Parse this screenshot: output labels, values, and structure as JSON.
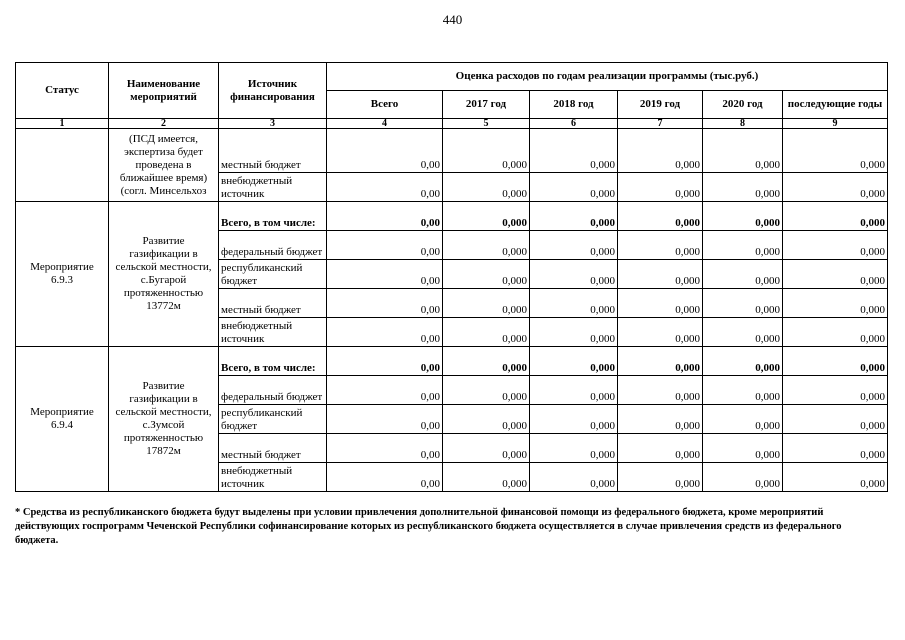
{
  "page_number": "440",
  "table": {
    "header": {
      "status": "Статус",
      "name": "Наименование мероприятий",
      "source": "Источник финансирования",
      "estimate": "Оценка расходов по годам реализации  программы (тыс.руб.)",
      "years": [
        "Всего",
        "2017 год",
        "2018 год",
        "2019 год",
        "2020 год",
        "последующие годы"
      ]
    },
    "column_numbers": [
      "1",
      "2",
      "3",
      "4",
      "5",
      "6",
      "7",
      "8",
      "9"
    ],
    "groups": [
      {
        "name": "(ПСД имеется, экспертиза будет проведена в ближайшее время) (согл. Минсельхоз",
        "rows": [
          {
            "source": "местный бюджет",
            "values": [
              "0,00",
              "0,000",
              "0,000",
              "0,000",
              "0,000",
              "0,000"
            ]
          },
          {
            "source": "внебюджетный источник",
            "values": [
              "0,00",
              "0,000",
              "0,000",
              "0,000",
              "0,000",
              "0,000"
            ]
          }
        ]
      },
      {
        "status": "Мероприятие 6.9.3",
        "name": "Развитие газификации в сельской местности, с.Бугарой протяженностью 13772м",
        "rows": [
          {
            "source": "Всего, в том числе:",
            "bold": true,
            "values": [
              "0,00",
              "0,000",
              "0,000",
              "0,000",
              "0,000",
              "0,000"
            ]
          },
          {
            "source": "федеральный бюджет",
            "values": [
              "0,00",
              "0,000",
              "0,000",
              "0,000",
              "0,000",
              "0,000"
            ]
          },
          {
            "source": "республиканский бюджет",
            "values": [
              "0,00",
              "0,000",
              "0,000",
              "0,000",
              "0,000",
              "0,000"
            ]
          },
          {
            "source": "местный бюджет",
            "values": [
              "0,00",
              "0,000",
              "0,000",
              "0,000",
              "0,000",
              "0,000"
            ]
          },
          {
            "source": "внебюджетный источник",
            "values": [
              "0,00",
              "0,000",
              "0,000",
              "0,000",
              "0,000",
              "0,000"
            ]
          }
        ]
      },
      {
        "status": "Мероприятие 6.9.4",
        "name": "Развитие газификации в сельской местности, с.Зумсой протяженностью 17872м",
        "rows": [
          {
            "source": "Всего, в том числе:",
            "bold": true,
            "values": [
              "0,00",
              "0,000",
              "0,000",
              "0,000",
              "0,000",
              "0,000"
            ]
          },
          {
            "source": "федеральный бюджет",
            "values": [
              "0,00",
              "0,000",
              "0,000",
              "0,000",
              "0,000",
              "0,000"
            ]
          },
          {
            "source": "республиканский бюджет",
            "values": [
              "0,00",
              "0,000",
              "0,000",
              "0,000",
              "0,000",
              "0,000"
            ]
          },
          {
            "source": "местный бюджет",
            "values": [
              "0,00",
              "0,000",
              "0,000",
              "0,000",
              "0,000",
              "0,000"
            ]
          },
          {
            "source": "внебюджетный источник",
            "values": [
              "0,00",
              "0,000",
              "0,000",
              "0,000",
              "0,000",
              "0,000"
            ]
          }
        ]
      }
    ]
  },
  "footnote": "* Средства из республиканского бюджета будут выделены при условии привлечения дополнительной финансовой помощи из федерального бюджета, кроме мероприятий действующих госпрограмм Чеченской Республики софинансирование которых из республиканского бюджета осуществляется в случае привлечения средств из федерального бюджета."
}
